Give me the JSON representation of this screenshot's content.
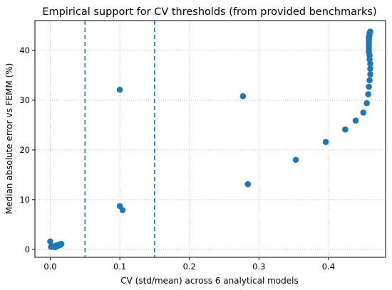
{
  "chart_data": {
    "type": "scatter",
    "title": "Empirical support for CV thresholds (from provided benchmarks)",
    "xlabel": "CV (std/mean) across 6 analytical models",
    "ylabel": "Median absolute error vs FEMM (%)",
    "xlim": [
      -0.022,
      0.482
    ],
    "ylim": [
      -1.6,
      46.0
    ],
    "xticks": [
      0.0,
      0.1,
      0.2,
      0.3,
      0.4
    ],
    "xtick_labels": [
      "0.0",
      "0.1",
      "0.2",
      "0.3",
      "0.4"
    ],
    "yticks": [
      0,
      10,
      20,
      30,
      40
    ],
    "ytick_labels": [
      "0",
      "10",
      "20",
      "30",
      "40"
    ],
    "grid": true,
    "grid_style": "dotted",
    "marker_color": "#1f77b4",
    "threshold_color": "#1f77b4",
    "thresholds": [
      0.05,
      0.15
    ],
    "points": [
      {
        "x": 0.0,
        "y": 1.6
      },
      {
        "x": 0.001,
        "y": 0.5
      },
      {
        "x": 0.005,
        "y": 0.6
      },
      {
        "x": 0.007,
        "y": 0.4
      },
      {
        "x": 0.009,
        "y": 0.8
      },
      {
        "x": 0.011,
        "y": 0.7
      },
      {
        "x": 0.013,
        "y": 1.0
      },
      {
        "x": 0.015,
        "y": 0.9
      },
      {
        "x": 0.016,
        "y": 1.1
      },
      {
        "x": 0.1,
        "y": 32.1
      },
      {
        "x": 0.1,
        "y": 8.7
      },
      {
        "x": 0.104,
        "y": 7.9
      },
      {
        "x": 0.277,
        "y": 30.8
      },
      {
        "x": 0.284,
        "y": 13.1
      },
      {
        "x": 0.353,
        "y": 18.0
      },
      {
        "x": 0.396,
        "y": 21.6
      },
      {
        "x": 0.424,
        "y": 24.1
      },
      {
        "x": 0.439,
        "y": 25.9
      },
      {
        "x": 0.45,
        "y": 27.5
      },
      {
        "x": 0.455,
        "y": 29.4
      },
      {
        "x": 0.457,
        "y": 31.2
      },
      {
        "x": 0.458,
        "y": 32.7
      },
      {
        "x": 0.459,
        "y": 34.0
      },
      {
        "x": 0.46,
        "y": 35.2
      },
      {
        "x": 0.46,
        "y": 36.3
      },
      {
        "x": 0.46,
        "y": 37.3
      },
      {
        "x": 0.459,
        "y": 38.2
      },
      {
        "x": 0.459,
        "y": 39.0
      },
      {
        "x": 0.458,
        "y": 39.7
      },
      {
        "x": 0.458,
        "y": 40.3
      },
      {
        "x": 0.458,
        "y": 40.9
      },
      {
        "x": 0.458,
        "y": 41.4
      },
      {
        "x": 0.458,
        "y": 41.9
      },
      {
        "x": 0.458,
        "y": 42.3
      },
      {
        "x": 0.458,
        "y": 42.7
      },
      {
        "x": 0.459,
        "y": 43.1
      },
      {
        "x": 0.459,
        "y": 43.5
      },
      {
        "x": 0.46,
        "y": 43.8
      }
    ]
  }
}
